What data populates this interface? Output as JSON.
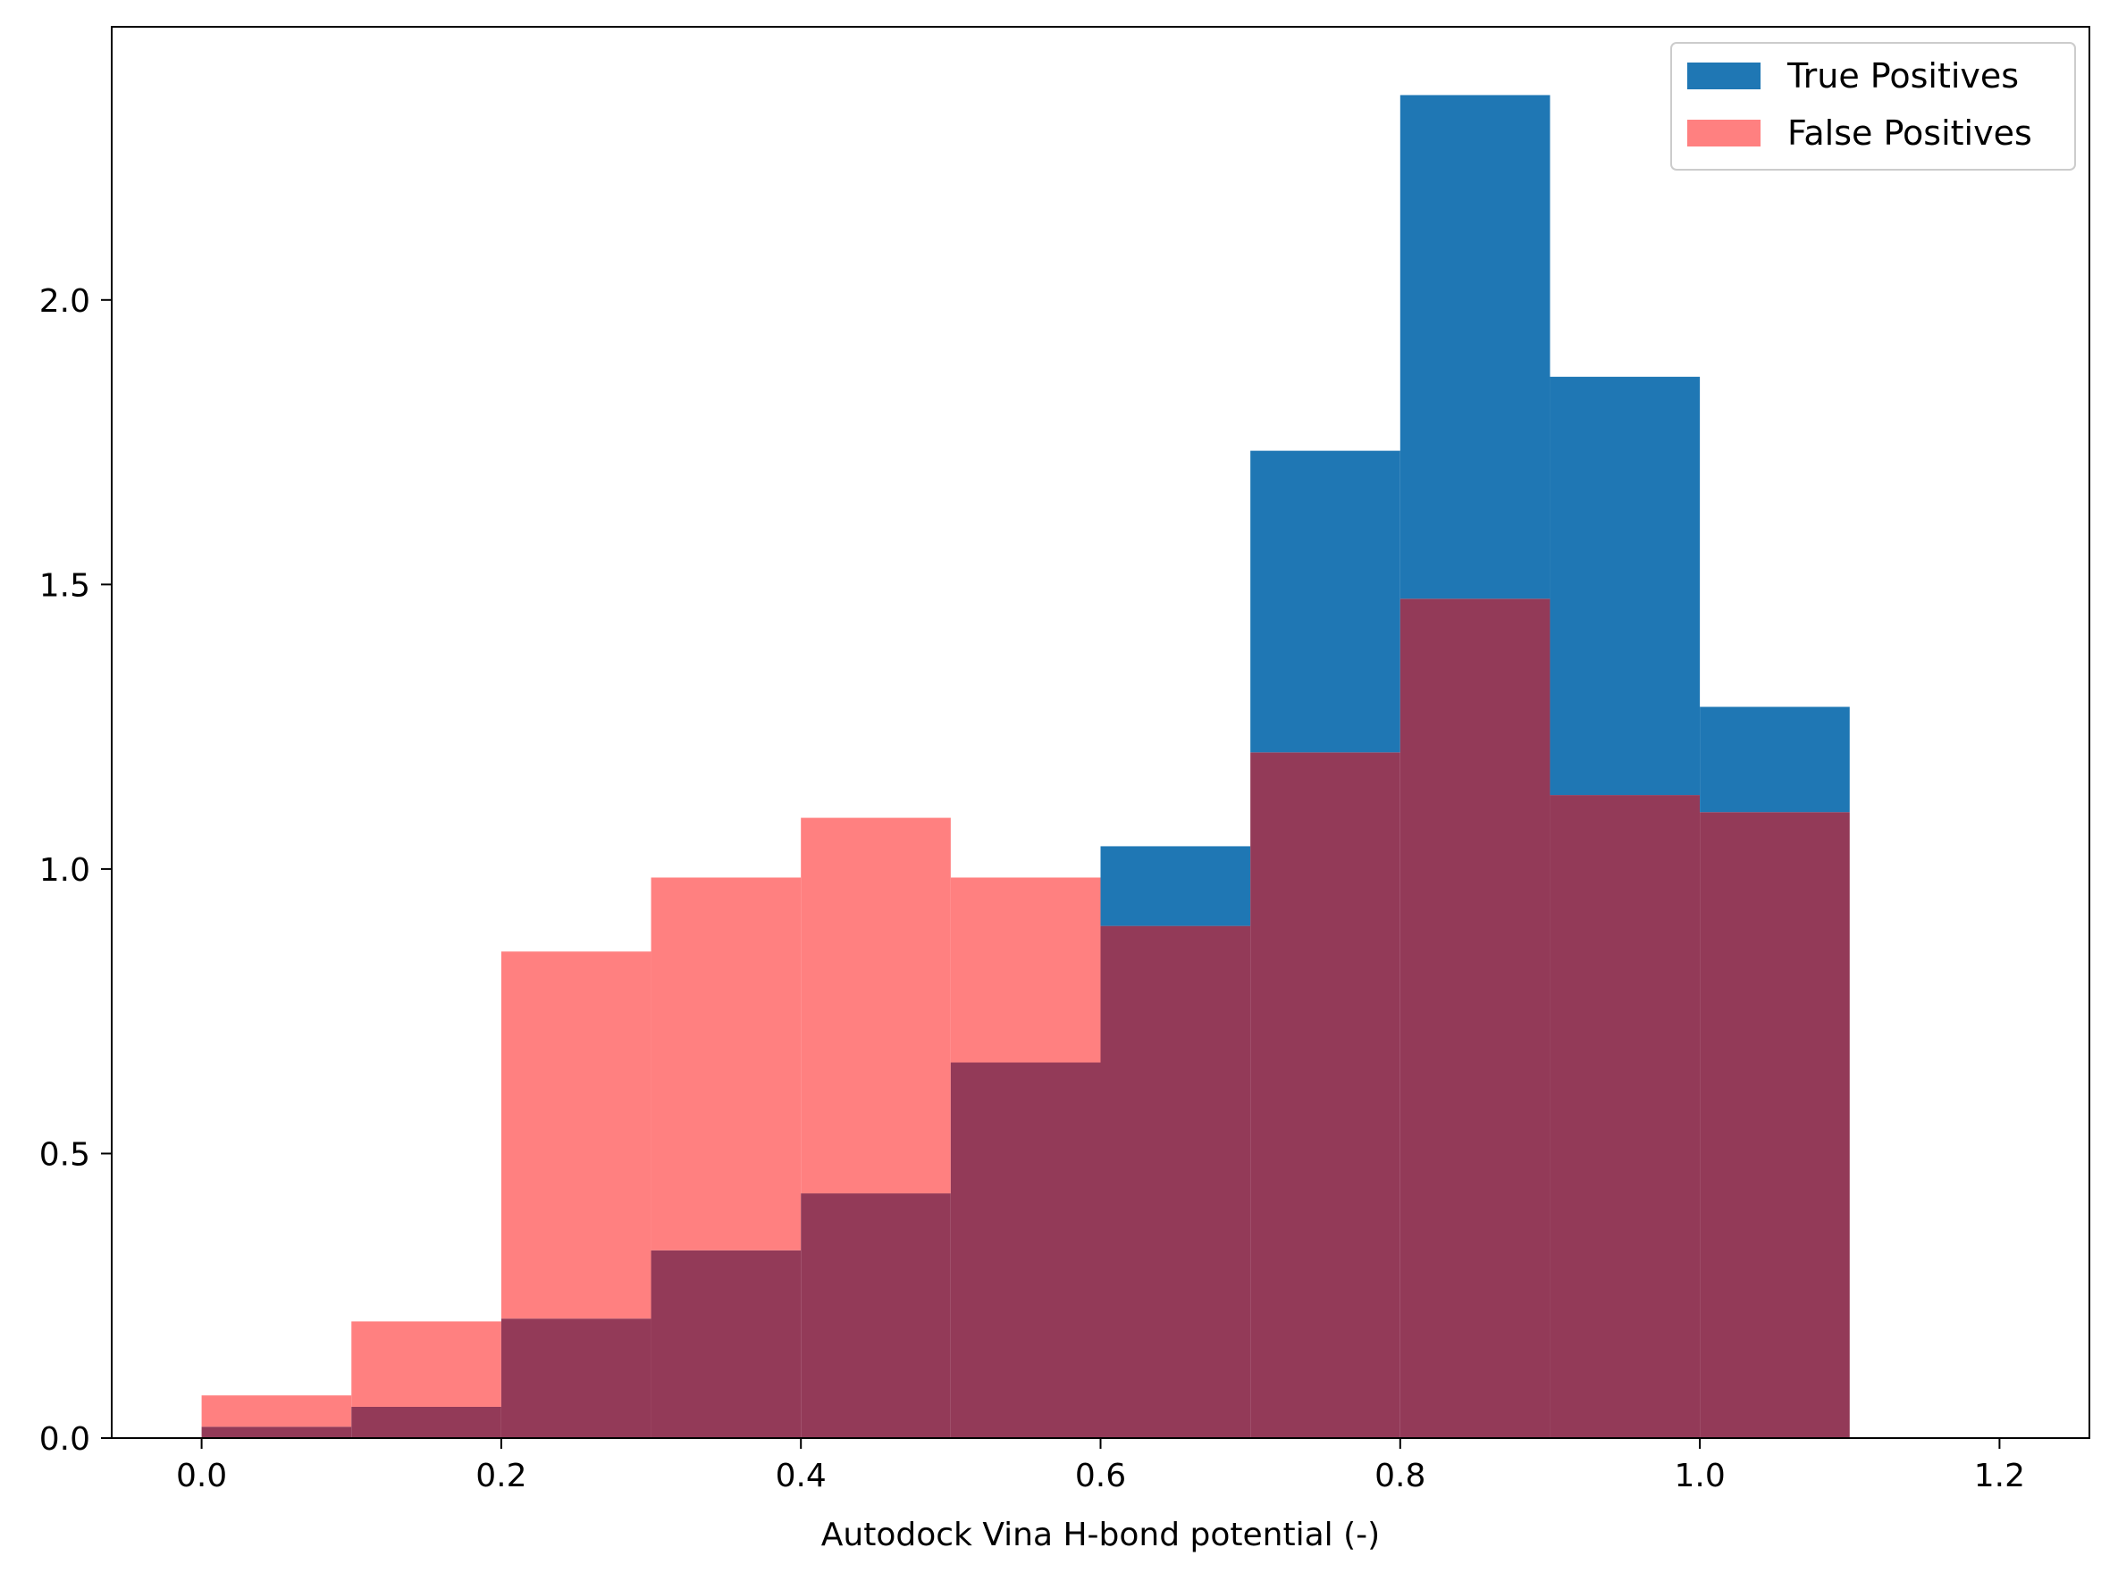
{
  "chart_data": {
    "type": "bar",
    "histogram": true,
    "xlabel": "Autodock Vina H-bond potential (-)",
    "ylabel": "",
    "xlim": [
      -0.06,
      1.26
    ],
    "ylim": [
      0,
      2.48
    ],
    "xticks": [
      0.0,
      0.2,
      0.4,
      0.6,
      0.8,
      1.0,
      1.2
    ],
    "xtick_labels": [
      "0.0",
      "0.2",
      "0.4",
      "0.6",
      "0.8",
      "1.0",
      "1.2"
    ],
    "yticks": [
      0.0,
      0.5,
      1.0,
      1.5,
      2.0
    ],
    "ytick_labels": [
      "0.0",
      "0.5",
      "1.0",
      "1.5",
      "2.0"
    ],
    "bin_edges": [
      0.0,
      0.1,
      0.2,
      0.3,
      0.4,
      0.5,
      0.6,
      0.7,
      0.8,
      0.9,
      1.0,
      1.1
    ],
    "series": [
      {
        "name": "True Positives",
        "color": "#1f77b4",
        "values": [
          0.02,
          0.055,
          0.21,
          0.33,
          0.43,
          0.66,
          1.04,
          1.735,
          2.36,
          1.865,
          1.285
        ]
      },
      {
        "name": "False Positives",
        "color": "#ff8080",
        "values": [
          0.075,
          0.205,
          0.855,
          0.985,
          1.09,
          0.985,
          0.9,
          1.205,
          1.475,
          1.13,
          1.1
        ]
      }
    ],
    "overlap_color": "#933a58",
    "legend_position": "upper-right",
    "grid": false
  }
}
